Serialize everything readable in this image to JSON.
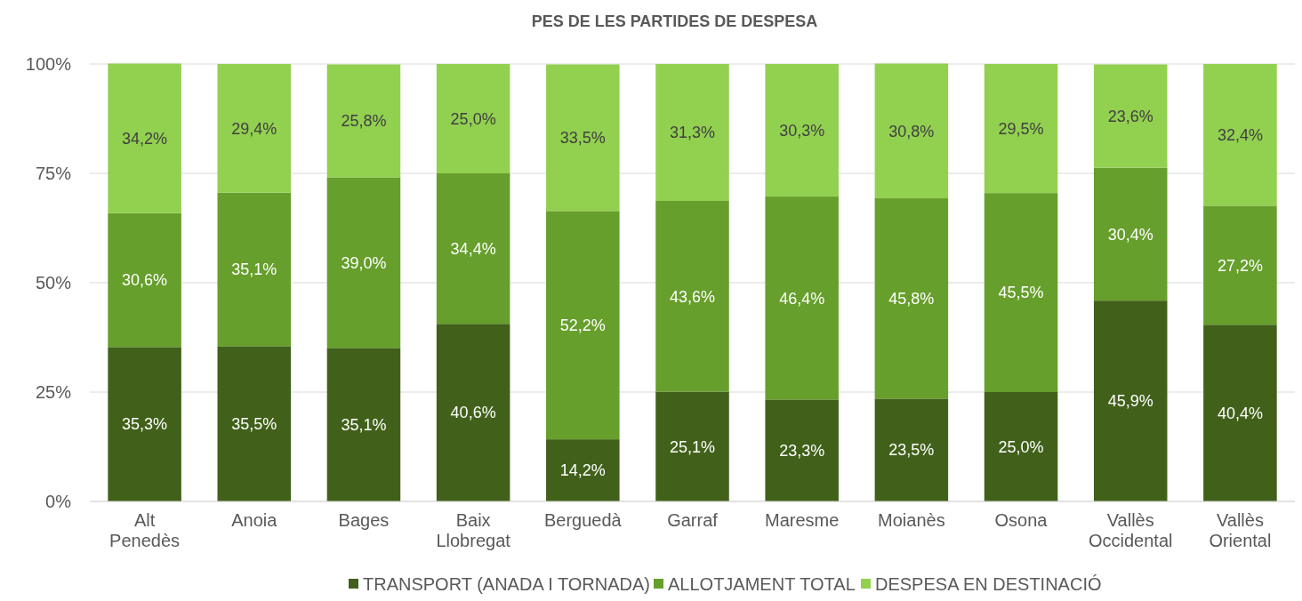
{
  "chart_data": {
    "type": "bar",
    "title": "PES DE LES PARTIDES DE DESPESA",
    "stacked": true,
    "categories": [
      "Alt Penedès",
      "Anoia",
      "Bages",
      "Baix Llobregat",
      "Berguedà",
      "Garraf",
      "Maresme",
      "Moianès",
      "Osona",
      "Vallès Occidental",
      "Vallès Oriental"
    ],
    "series": [
      {
        "name": "TRANSPORT (ANADA I TORNADA)",
        "color": "#41611a",
        "values": [
          35.3,
          35.5,
          35.1,
          40.6,
          14.2,
          25.1,
          23.3,
          23.5,
          25.0,
          45.9,
          40.4
        ],
        "value_labels": [
          "35,3%",
          "35,5%",
          "35,1%",
          "40,6%",
          "14,2%",
          "25,1%",
          "23,3%",
          "23,5%",
          "25,0%",
          "45,9%",
          "40,4%"
        ]
      },
      {
        "name": "ALLOTJAMENT TOTAL",
        "color": "#669f2b",
        "values": [
          30.6,
          35.1,
          39.0,
          34.4,
          52.2,
          43.6,
          46.4,
          45.8,
          45.5,
          30.4,
          27.2
        ],
        "value_labels": [
          "30,6%",
          "35,1%",
          "39,0%",
          "34,4%",
          "52,2%",
          "43,6%",
          "46,4%",
          "45,8%",
          "45,5%",
          "30,4%",
          "27,2%"
        ]
      },
      {
        "name": "DESPESA EN DESTINACIÓ",
        "color": "#92d050",
        "values": [
          34.2,
          29.4,
          25.8,
          25.0,
          33.5,
          31.3,
          30.3,
          30.8,
          29.5,
          23.6,
          32.4
        ],
        "value_labels": [
          "34,2%",
          "29,4%",
          "25,8%",
          "25,0%",
          "33,5%",
          "31,3%",
          "30,3%",
          "30,8%",
          "29,5%",
          "23,6%",
          "32,4%"
        ]
      }
    ],
    "ylim": [
      0,
      100
    ],
    "yticks": [
      {
        "value": 0,
        "label": "0%"
      },
      {
        "value": 25,
        "label": "25%"
      },
      {
        "value": 50,
        "label": "50%"
      },
      {
        "value": 75,
        "label": "75%"
      },
      {
        "value": 100,
        "label": "100%"
      }
    ],
    "grid": "y",
    "legend": "bottom"
  }
}
